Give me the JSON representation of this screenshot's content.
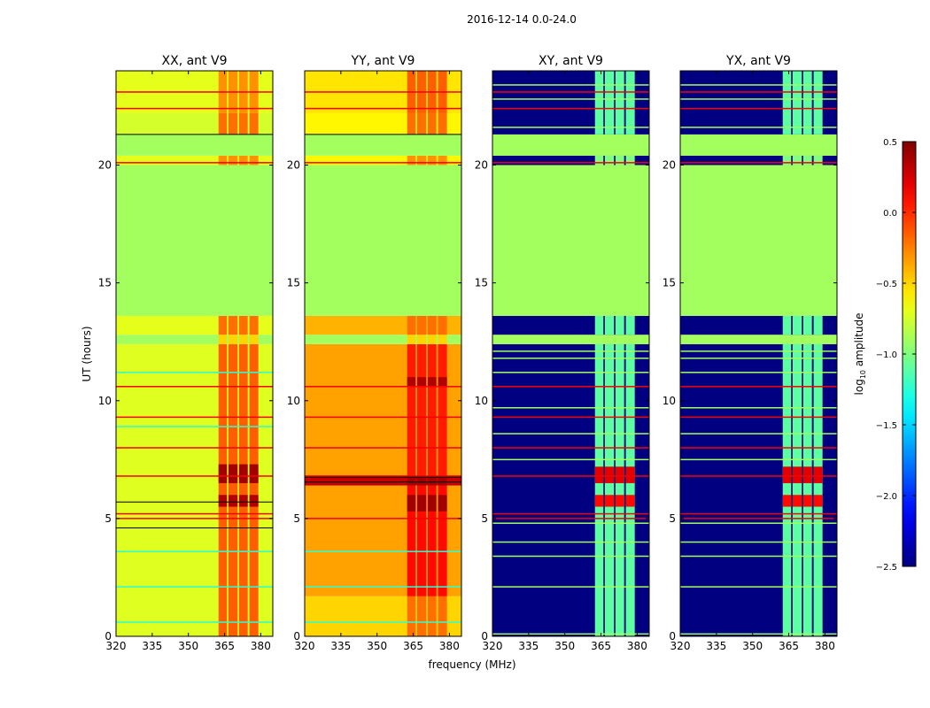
{
  "chart_data": {
    "type": "heatmap",
    "title": "2016-12-14 0.0-24.0",
    "xlabel": "frequency (MHz)",
    "ylabel": "UT (hours)",
    "xlim": [
      320,
      385
    ],
    "ylim": [
      0,
      24
    ],
    "xticks": [
      "320",
      "335",
      "350",
      "365",
      "380"
    ],
    "yticks": [
      "0",
      "5",
      "10",
      "15",
      "20"
    ],
    "colorbar": {
      "label_main": "log",
      "label_sub": "10",
      "label_rest": " amplitude",
      "range": [
        -2.5,
        0.5
      ],
      "ticks": [
        "0.5",
        "0.0",
        "−0.5",
        "−1.0",
        "−1.5",
        "−2.0",
        "−2.5"
      ],
      "colormap": "jet"
    },
    "rfi_columns_mhz": [
      [
        362.5,
        366
      ],
      [
        366.6,
        370.4
      ],
      [
        371,
        374.6
      ],
      [
        375.3,
        379
      ]
    ],
    "panels": [
      {
        "title": "XX, ant V9",
        "bands": [
          [
            0,
            12.4,
            -0.72,
            -0.15
          ],
          [
            12.4,
            12.8,
            -0.9,
            -0.5
          ],
          [
            12.8,
            13.6,
            -0.7,
            -0.2
          ],
          [
            13.6,
            20,
            -0.9,
            -0.9
          ],
          [
            20,
            20.4,
            -0.7,
            -0.3
          ],
          [
            20.4,
            21.3,
            -0.9,
            -0.9
          ],
          [
            21.3,
            22.2,
            -0.75,
            -0.2
          ],
          [
            22.2,
            24,
            -0.7,
            -0.3
          ]
        ],
        "hot_bands": [
          [
            5.5,
            6.0,
            0.35
          ],
          [
            6.5,
            7.3,
            0.4
          ]
        ],
        "red_lines": [
          5.0,
          5.2,
          6.8,
          8.0,
          9.3,
          10.6,
          20.1,
          22.4,
          23.1
        ],
        "black_lines": [
          4.6,
          5.7,
          21.3
        ],
        "cyan_lines": [
          0.6,
          2.1,
          3.6,
          8.9,
          11.2
        ]
      },
      {
        "title": "YY, ant V9",
        "bands": [
          [
            0,
            1.7,
            -0.5,
            -0.2
          ],
          [
            1.7,
            6.4,
            -0.35,
            0.1
          ],
          [
            6.4,
            6.8,
            0.3,
            0.4
          ],
          [
            6.8,
            12.4,
            -0.35,
            0.05
          ],
          [
            12.4,
            12.8,
            -0.9,
            -0.5
          ],
          [
            12.8,
            13.6,
            -0.4,
            -0.2
          ],
          [
            13.6,
            20,
            -0.9,
            -0.9
          ],
          [
            20,
            20.4,
            -0.6,
            -0.3
          ],
          [
            20.4,
            21.3,
            -0.9,
            -0.9
          ],
          [
            21.3,
            22.2,
            -0.6,
            -0.2
          ],
          [
            22.2,
            24,
            -0.55,
            -0.15
          ]
        ],
        "hot_bands": [
          [
            5.3,
            6.0,
            0.4
          ],
          [
            10.6,
            11.0,
            0.35
          ]
        ],
        "red_lines": [
          5.0,
          6.8,
          8.0,
          9.3,
          10.6,
          20.1,
          22.4,
          23.1
        ],
        "black_lines": [
          6.55,
          6.75,
          21.3
        ],
        "cyan_lines": [
          0.6,
          2.1,
          3.6
        ]
      },
      {
        "title": "XY, ant V9",
        "bands": [
          [
            0,
            12.4,
            -2.5,
            -1.1
          ],
          [
            12.4,
            12.8,
            -0.9,
            -0.9
          ],
          [
            12.8,
            13.6,
            -2.5,
            -1.1
          ],
          [
            13.6,
            20,
            -0.9,
            -0.9
          ],
          [
            20,
            20.4,
            -2.5,
            -1.0
          ],
          [
            20.4,
            21.3,
            -0.9,
            -0.9
          ],
          [
            21.3,
            24,
            -2.5,
            -1.1
          ]
        ],
        "hot_bands": [
          [
            5.5,
            6.0,
            0.1
          ],
          [
            6.5,
            7.2,
            0.2
          ]
        ],
        "red_lines": [
          5.0,
          5.2,
          6.8,
          8.0,
          9.3,
          10.6,
          20.1,
          22.4,
          23.1
        ],
        "black_lines": [],
        "cyan_lines": [
          0.1,
          2.1,
          3.4,
          4.0,
          4.8,
          7.5,
          8.6,
          9.7,
          11.2,
          11.8,
          12.1,
          21.6,
          22.8,
          23.4
        ]
      },
      {
        "title": "YX, ant V9",
        "bands": [
          [
            0,
            12.4,
            -2.5,
            -1.1
          ],
          [
            12.4,
            12.8,
            -0.9,
            -0.9
          ],
          [
            12.8,
            13.6,
            -2.5,
            -1.1
          ],
          [
            13.6,
            20,
            -0.9,
            -0.9
          ],
          [
            20,
            20.4,
            -2.5,
            -1.0
          ],
          [
            20.4,
            21.3,
            -0.9,
            -0.9
          ],
          [
            21.3,
            24,
            -2.5,
            -1.1
          ]
        ],
        "hot_bands": [
          [
            5.5,
            6.0,
            0.1
          ],
          [
            6.5,
            7.2,
            0.2
          ]
        ],
        "red_lines": [
          5.0,
          5.2,
          6.8,
          8.0,
          9.3,
          10.6,
          20.1,
          22.4,
          23.1
        ],
        "black_lines": [],
        "cyan_lines": [
          0.1,
          2.1,
          3.4,
          4.0,
          4.8,
          7.5,
          8.6,
          9.7,
          11.2,
          11.8,
          12.1,
          21.6,
          22.8,
          23.4
        ]
      }
    ]
  }
}
